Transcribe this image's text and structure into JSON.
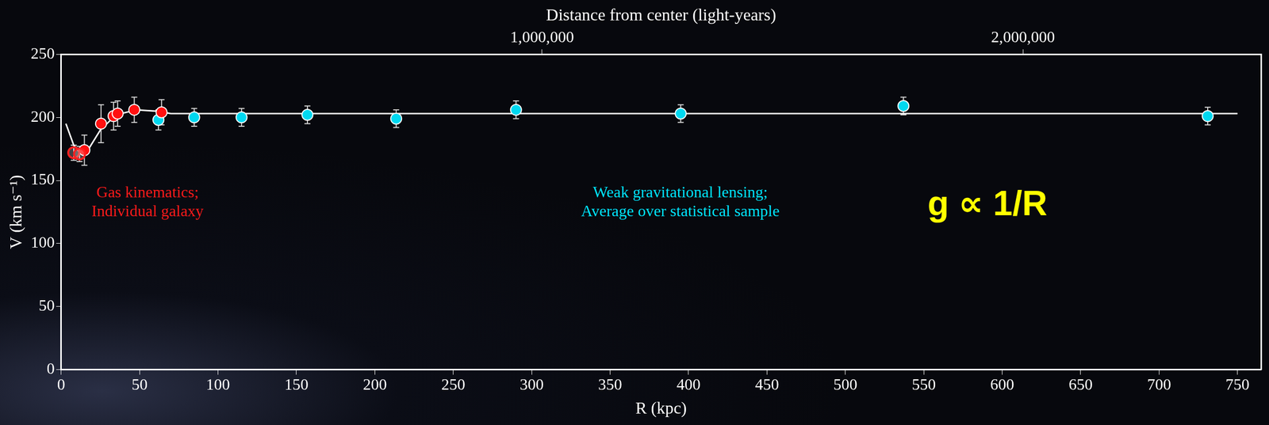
{
  "chart_data": {
    "type": "scatter",
    "x_label": "R (kpc)",
    "x2_label": "Distance from center (light-years)",
    "y_label": "V (km s⁻¹)",
    "xlim": [
      0,
      765
    ],
    "xticks": [
      0,
      50,
      100,
      150,
      200,
      250,
      300,
      350,
      400,
      450,
      500,
      550,
      600,
      650,
      700,
      750
    ],
    "x2lim": [
      0,
      2495093
    ],
    "x2ticks": [
      {
        "value": 1000000,
        "label": "1,000,000"
      },
      {
        "value": 2000000,
        "label": "2,000,000"
      }
    ],
    "ylim": [
      0,
      250
    ],
    "yticks": [
      0,
      50,
      100,
      150,
      200,
      250
    ],
    "grid": false,
    "series": [
      {
        "type": "line",
        "color": "#ffffff",
        "marker": "none",
        "line_style": "solid",
        "x": [
          3,
          8,
          12,
          18,
          25,
          35,
          48,
          60,
          70,
          750
        ],
        "values": [
          195,
          178,
          172,
          176,
          190,
          202,
          206,
          205,
          203,
          203
        ]
      },
      {
        "type": "scatter",
        "color": "#ff2020",
        "marker": "hollow",
        "x": [
          8,
          11.7
        ],
        "values": [
          172,
          171
        ],
        "errors": [
          6,
          6
        ]
      },
      {
        "type": "scatter",
        "color": "#ff1010",
        "marker": "circle",
        "x": [
          14.8,
          25.4,
          33.4,
          36,
          46.6,
          64
        ],
        "values": [
          174,
          195,
          201,
          203,
          206,
          204
        ],
        "errors": [
          12,
          15,
          11,
          10,
          10,
          10
        ]
      },
      {
        "type": "scatter",
        "color": "#00d8f0",
        "marker": "circle",
        "x": [
          62,
          84.8,
          115,
          157,
          213.6,
          290,
          395,
          537,
          731
        ],
        "values": [
          198,
          200,
          200,
          202,
          199,
          206,
          203,
          209,
          201
        ],
        "errors": [
          8,
          7,
          7,
          7,
          7,
          7,
          7,
          7,
          7
        ]
      }
    ],
    "annotations": [
      {
        "text": [
          "Gas kinematics;",
          "Individual galaxy"
        ],
        "color": "#ff1a1a"
      },
      {
        "text": [
          "Weak gravitational lensing;",
          "Average over statistical sample"
        ],
        "color": "#00e5ff"
      },
      {
        "text": [
          "g ∝ 1/R"
        ],
        "color": "#ffff00"
      }
    ]
  }
}
